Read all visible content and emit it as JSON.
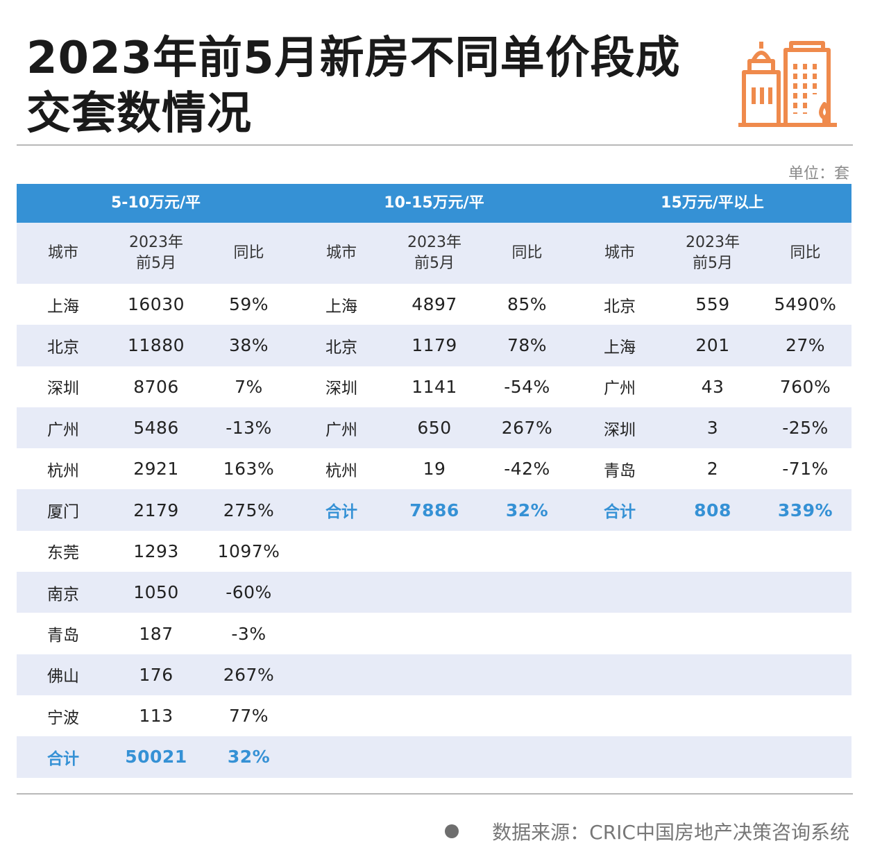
{
  "title": {
    "line1": "2023年前5月新房不同单价段成",
    "line2": "交套数情况"
  },
  "unit_label": "单位：套",
  "colors": {
    "header_blue": "#3591d5",
    "row_stripe": "#e7ebf7",
    "total_text": "#3591d5",
    "logo_orange": "#ef8a4c"
  },
  "column_headers": {
    "city": "城市",
    "period_line1": "2023年",
    "period_line2": "前5月",
    "yoy": "同比"
  },
  "groups": [
    {
      "label": "5-10万元/平",
      "rows": [
        {
          "city": "上海",
          "value": "16030",
          "yoy": "59%"
        },
        {
          "city": "北京",
          "value": "11880",
          "yoy": "38%"
        },
        {
          "city": "深圳",
          "value": "8706",
          "yoy": "7%"
        },
        {
          "city": "广州",
          "value": "5486",
          "yoy": "-13%"
        },
        {
          "city": "杭州",
          "value": "2921",
          "yoy": "163%"
        },
        {
          "city": "厦门",
          "value": "2179",
          "yoy": "275%"
        },
        {
          "city": "东莞",
          "value": "1293",
          "yoy": "1097%"
        },
        {
          "city": "南京",
          "value": "1050",
          "yoy": "-60%"
        },
        {
          "city": "青岛",
          "value": "187",
          "yoy": "-3%"
        },
        {
          "city": "佛山",
          "value": "176",
          "yoy": "267%"
        },
        {
          "city": "宁波",
          "value": "113",
          "yoy": "77%"
        }
      ],
      "total": {
        "label": "合计",
        "value": "50021",
        "yoy": "32%"
      }
    },
    {
      "label": "10-15万元/平",
      "rows": [
        {
          "city": "上海",
          "value": "4897",
          "yoy": "85%"
        },
        {
          "city": "北京",
          "value": "1179",
          "yoy": "78%"
        },
        {
          "city": "深圳",
          "value": "1141",
          "yoy": "-54%"
        },
        {
          "city": "广州",
          "value": "650",
          "yoy": "267%"
        },
        {
          "city": "杭州",
          "value": "19",
          "yoy": "-42%"
        }
      ],
      "total": {
        "label": "合计",
        "value": "7886",
        "yoy": "32%"
      }
    },
    {
      "label": "15万元/平以上",
      "rows": [
        {
          "city": "北京",
          "value": "559",
          "yoy": "5490%"
        },
        {
          "city": "上海",
          "value": "201",
          "yoy": "27%"
        },
        {
          "city": "广州",
          "value": "43",
          "yoy": "760%"
        },
        {
          "city": "深圳",
          "value": "3",
          "yoy": "-25%"
        },
        {
          "city": "青岛",
          "value": "2",
          "yoy": "-71%"
        }
      ],
      "total": {
        "label": "合计",
        "value": "808",
        "yoy": "339%"
      }
    }
  ],
  "source": "数据来源：CRIC中国房地产决策咨询系统",
  "icons": {
    "logo": "building-icon",
    "bullet": "dot-icon"
  }
}
